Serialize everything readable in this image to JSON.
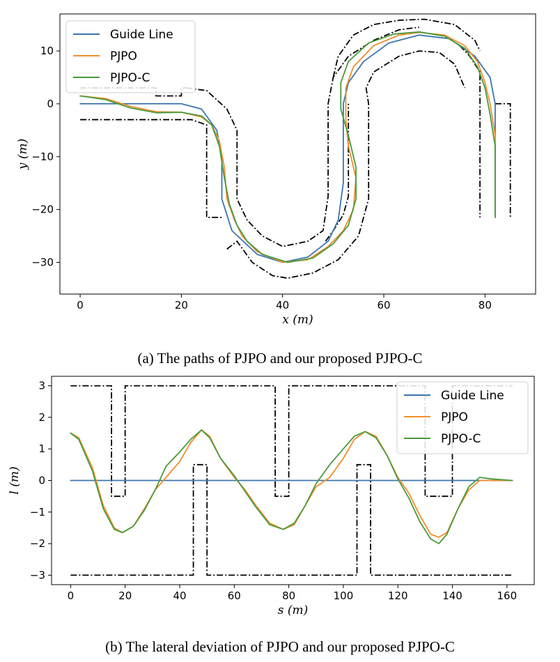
{
  "captions": {
    "a": "(a) The paths of PJPO and our proposed PJPO-C",
    "b": "(b) The lateral deviation of PJPO and our proposed PJPO-C"
  },
  "colors": {
    "guide": "#3b75af",
    "pjpo": "#f28e2b",
    "pjpoc": "#4a9a3b",
    "boundary": "#000000"
  },
  "chart_data": [
    {
      "type": "line",
      "xlabel_var": "x",
      "ylabel_var": "y",
      "unit": "(m)",
      "xlim": [
        -4,
        90
      ],
      "ylim": [
        -36,
        17
      ],
      "xticks": [
        0,
        20,
        40,
        60,
        80
      ],
      "yticks": [
        10,
        0,
        -10,
        -20,
        -30
      ],
      "legend": {
        "position": "top-left"
      },
      "series": [
        {
          "name": "Guide Line",
          "points": [
            [
              0,
              0
            ],
            [
              20,
              0
            ],
            [
              24,
              -1
            ],
            [
              27,
              -5
            ],
            [
              28,
              -10
            ],
            [
              28,
              -18
            ],
            [
              30,
              -24
            ],
            [
              35,
              -28.5
            ],
            [
              40,
              -30
            ],
            [
              45,
              -29
            ],
            [
              49,
              -26
            ],
            [
              51,
              -22
            ],
            [
              52,
              -15
            ],
            [
              52,
              0
            ],
            [
              53,
              4
            ],
            [
              56,
              8
            ],
            [
              61,
              11.5
            ],
            [
              67,
              13
            ],
            [
              73,
              12.3
            ],
            [
              78,
              9
            ],
            [
              81,
              5
            ],
            [
              82,
              0
            ],
            [
              82,
              -21.5
            ]
          ]
        },
        {
          "name": "PJPO",
          "points": [
            [
              0,
              1.5
            ],
            [
              5,
              1
            ],
            [
              10,
              -0.5
            ],
            [
              15,
              -1.5
            ],
            [
              20,
              -1.6
            ],
            [
              24,
              -2.5
            ],
            [
              26,
              -4
            ],
            [
              27.5,
              -7
            ],
            [
              28.5,
              -12
            ],
            [
              29,
              -18
            ],
            [
              30.5,
              -22
            ],
            [
              32,
              -25
            ],
            [
              35,
              -28
            ],
            [
              40,
              -30
            ],
            [
              45,
              -29.5
            ],
            [
              49,
              -27
            ],
            [
              52,
              -24
            ],
            [
              54,
              -20
            ],
            [
              54.5,
              -14
            ],
            [
              53,
              -8
            ],
            [
              52.5,
              -3
            ],
            [
              52.5,
              3
            ],
            [
              54,
              7
            ],
            [
              58,
              11
            ],
            [
              63,
              13
            ],
            [
              67,
              13.5
            ],
            [
              72,
              13
            ],
            [
              76,
              11
            ],
            [
              78.5,
              8
            ],
            [
              80,
              4
            ],
            [
              81,
              0
            ],
            [
              82,
              -6
            ],
            [
              82,
              -21.5
            ]
          ]
        },
        {
          "name": "PJPO-C",
          "points": [
            [
              0,
              1.5
            ],
            [
              5,
              0.8
            ],
            [
              10,
              -0.8
            ],
            [
              15,
              -1.7
            ],
            [
              20,
              -1.6
            ],
            [
              24,
              -2.3
            ],
            [
              26,
              -4
            ],
            [
              27.5,
              -8
            ],
            [
              28.5,
              -14
            ],
            [
              29.5,
              -19
            ],
            [
              31,
              -23
            ],
            [
              33,
              -26
            ],
            [
              36,
              -28.5
            ],
            [
              41,
              -30
            ],
            [
              46,
              -29.2
            ],
            [
              50,
              -26.5
            ],
            [
              53,
              -23
            ],
            [
              54.5,
              -18
            ],
            [
              54.5,
              -12
            ],
            [
              53,
              -6
            ],
            [
              51.5,
              -1
            ],
            [
              51.5,
              4
            ],
            [
              53,
              8
            ],
            [
              57,
              11.5
            ],
            [
              62,
              13.2
            ],
            [
              67,
              13.6
            ],
            [
              72,
              12.8
            ],
            [
              76,
              10.5
            ],
            [
              78.5,
              7
            ],
            [
              80,
              3
            ],
            [
              81,
              -2
            ],
            [
              82,
              -8
            ],
            [
              82,
              -21.5
            ]
          ]
        }
      ],
      "boundaries": [
        [
          [
            0,
            3
          ],
          [
            15,
            3
          ],
          [
            15,
            1.5
          ],
          [
            20,
            1.5
          ],
          [
            20,
            3
          ],
          [
            22,
            3
          ]
        ],
        [
          [
            0,
            -3
          ],
          [
            22,
            -3
          ],
          [
            25,
            -4
          ],
          [
            25,
            -8
          ],
          [
            25,
            -21.5
          ],
          [
            28,
            -21.5
          ]
        ],
        [
          [
            21,
            3
          ],
          [
            25,
            2.5
          ],
          [
            29,
            -1
          ],
          [
            31,
            -5
          ],
          [
            31,
            -10
          ],
          [
            31,
            -18
          ],
          [
            33,
            -22
          ],
          [
            36,
            -25
          ],
          [
            40,
            -27
          ],
          [
            45,
            -26
          ],
          [
            48,
            -24
          ],
          [
            49,
            -17.5
          ],
          [
            49,
            -7
          ],
          [
            49,
            0
          ],
          [
            50,
            5
          ],
          [
            53,
            9
          ],
          [
            58,
            12
          ],
          [
            63,
            14
          ],
          [
            67,
            14.5
          ]
        ],
        [
          [
            29,
            -27.5
          ],
          [
            31,
            -26
          ],
          [
            34,
            -30
          ],
          [
            38,
            -32.5
          ],
          [
            41,
            -33
          ],
          [
            46,
            -32
          ],
          [
            51,
            -29.5
          ],
          [
            55,
            -25
          ],
          [
            57,
            -18
          ],
          [
            57,
            -10
          ],
          [
            57,
            0
          ],
          [
            56.5,
            3
          ],
          [
            58,
            6
          ],
          [
            63,
            9
          ],
          [
            67,
            10
          ],
          [
            71,
            9.7
          ],
          [
            74,
            7.5
          ],
          [
            76,
            3
          ]
        ],
        [
          [
            48.5,
            -26
          ],
          [
            50,
            -24
          ],
          [
            52,
            -21
          ],
          [
            53,
            -17.5
          ],
          [
            53,
            -10
          ],
          [
            53,
            -5
          ],
          [
            53,
            0
          ]
        ],
        [
          [
            50,
            5
          ],
          [
            51,
            9
          ],
          [
            54,
            13
          ],
          [
            58,
            15
          ],
          [
            63,
            15.8
          ],
          [
            68,
            16
          ],
          [
            74,
            15
          ],
          [
            78,
            12
          ],
          [
            79,
            10
          ]
        ],
        [
          [
            75,
            11
          ],
          [
            77,
            9
          ],
          [
            79,
            6
          ],
          [
            79,
            -4
          ],
          [
            79,
            -21.5
          ]
        ],
        [
          [
            82,
            0
          ],
          [
            85,
            0
          ],
          [
            85,
            -21.5
          ]
        ]
      ]
    },
    {
      "type": "line",
      "xlabel_var": "s",
      "ylabel_var": "l",
      "unit": "(m)",
      "xlim": [
        -7,
        170
      ],
      "ylim": [
        -3.3,
        3.3
      ],
      "xticks": [
        0,
        20,
        40,
        60,
        80,
        100,
        120,
        140,
        160
      ],
      "yticks": [
        3,
        2,
        1,
        0,
        -1,
        -2,
        -3
      ],
      "legend": {
        "position": "top-right"
      },
      "series": [
        {
          "name": "Guide Line",
          "points": [
            [
              0,
              0
            ],
            [
              162,
              0
            ]
          ]
        },
        {
          "name": "PJPO",
          "points": [
            [
              0,
              1.5
            ],
            [
              3,
              1.35
            ],
            [
              8,
              0.4
            ],
            [
              12,
              -0.8
            ],
            [
              16,
              -1.5
            ],
            [
              19,
              -1.65
            ],
            [
              23,
              -1.45
            ],
            [
              27,
              -0.9
            ],
            [
              31,
              -0.3
            ],
            [
              35,
              0.1
            ],
            [
              40,
              0.6
            ],
            [
              44,
              1.2
            ],
            [
              48,
              1.6
            ],
            [
              51,
              1.4
            ],
            [
              55,
              0.7
            ],
            [
              60,
              0.1
            ],
            [
              64,
              -0.3
            ],
            [
              68,
              -0.8
            ],
            [
              73,
              -1.35
            ],
            [
              78,
              -1.55
            ],
            [
              82,
              -1.4
            ],
            [
              86,
              -0.8
            ],
            [
              90,
              -0.2
            ],
            [
              95,
              0.1
            ],
            [
              100,
              0.7
            ],
            [
              104,
              1.3
            ],
            [
              108,
              1.55
            ],
            [
              112,
              1.4
            ],
            [
              116,
              0.8
            ],
            [
              120,
              0.1
            ],
            [
              124,
              -0.4
            ],
            [
              128,
              -1.1
            ],
            [
              132,
              -1.7
            ],
            [
              135,
              -1.8
            ],
            [
              138,
              -1.65
            ],
            [
              142,
              -0.9
            ],
            [
              146,
              -0.3
            ],
            [
              150,
              0
            ],
            [
              155,
              0
            ],
            [
              162,
              0
            ]
          ]
        },
        {
          "name": "PJPO-C",
          "points": [
            [
              0,
              1.5
            ],
            [
              3,
              1.3
            ],
            [
              8,
              0.3
            ],
            [
              12,
              -0.9
            ],
            [
              16,
              -1.55
            ],
            [
              19,
              -1.65
            ],
            [
              23,
              -1.45
            ],
            [
              27,
              -0.95
            ],
            [
              31,
              -0.3
            ],
            [
              35,
              0.45
            ],
            [
              40,
              0.9
            ],
            [
              44,
              1.3
            ],
            [
              48,
              1.6
            ],
            [
              51,
              1.35
            ],
            [
              55,
              0.7
            ],
            [
              60,
              0.15
            ],
            [
              64,
              -0.35
            ],
            [
              68,
              -0.85
            ],
            [
              73,
              -1.4
            ],
            [
              78,
              -1.55
            ],
            [
              82,
              -1.35
            ],
            [
              86,
              -0.8
            ],
            [
              90,
              -0.1
            ],
            [
              95,
              0.5
            ],
            [
              100,
              1
            ],
            [
              104,
              1.4
            ],
            [
              108,
              1.55
            ],
            [
              112,
              1.35
            ],
            [
              116,
              0.8
            ],
            [
              120,
              0.05
            ],
            [
              124,
              -0.55
            ],
            [
              128,
              -1.3
            ],
            [
              132,
              -1.85
            ],
            [
              135,
              -2
            ],
            [
              138,
              -1.7
            ],
            [
              142,
              -0.9
            ],
            [
              146,
              -0.2
            ],
            [
              150,
              0.1
            ],
            [
              154,
              0.05
            ],
            [
              162,
              0
            ]
          ]
        }
      ],
      "boundaries": [
        [
          [
            0,
            3
          ],
          [
            15,
            3
          ],
          [
            15,
            -0.5
          ],
          [
            20,
            -0.5
          ],
          [
            20,
            3
          ],
          [
            75,
            3
          ],
          [
            75,
            -0.5
          ],
          [
            80,
            -0.5
          ],
          [
            80,
            3
          ],
          [
            130,
            3
          ],
          [
            130,
            -0.5
          ],
          [
            140,
            -0.5
          ],
          [
            140,
            3
          ],
          [
            162,
            3
          ]
        ],
        [
          [
            0,
            -3
          ],
          [
            45,
            -3
          ],
          [
            45,
            0.5
          ],
          [
            50,
            0.5
          ],
          [
            50,
            -3
          ],
          [
            105,
            -3
          ],
          [
            105,
            0.5
          ],
          [
            110,
            0.5
          ],
          [
            110,
            -3
          ],
          [
            162,
            -3
          ]
        ]
      ]
    }
  ]
}
